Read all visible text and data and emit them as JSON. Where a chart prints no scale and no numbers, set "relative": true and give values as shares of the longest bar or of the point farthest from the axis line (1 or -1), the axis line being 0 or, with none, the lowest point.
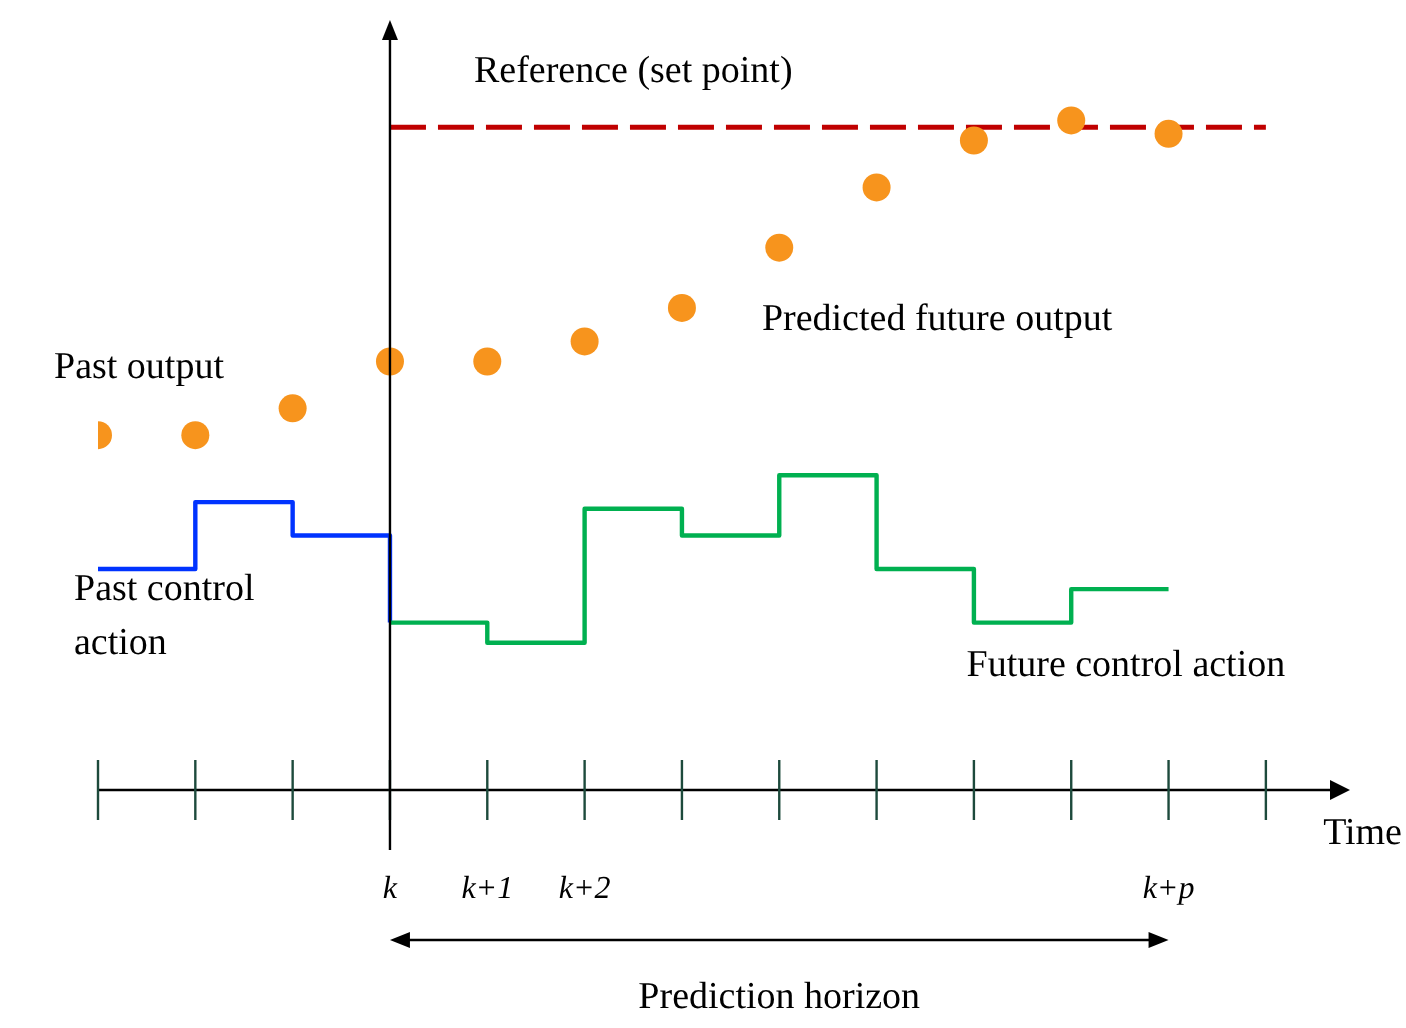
{
  "chart_data": {
    "type": "line",
    "relative": true,
    "xlabel": "Time",
    "categories": [
      null,
      null,
      null,
      "k",
      "k+1",
      "k+2",
      null,
      null,
      null,
      null,
      null,
      "k+p",
      null
    ],
    "tick_labels": "x",
    "legend": false,
    "series": [
      {
        "name": "Reference (set point)",
        "color": "#c00000",
        "line_style": "dashed",
        "marker": "none",
        "values": [
          null,
          null,
          null,
          0.99,
          0.99,
          0.99,
          0.99,
          0.99,
          0.99,
          0.99,
          0.99,
          0.99,
          0.99
        ]
      },
      {
        "name": "Past output",
        "type": "scatter",
        "color": "#f7941d",
        "marker": "circle",
        "values": [
          0.53,
          0.53,
          0.57,
          0.64,
          null,
          null,
          null,
          null,
          null,
          null,
          null,
          null,
          null
        ]
      },
      {
        "name": "Predicted future output",
        "type": "scatter",
        "color": "#f7941d",
        "marker": "circle",
        "values": [
          null,
          null,
          null,
          null,
          0.64,
          0.67,
          0.72,
          0.81,
          0.9,
          0.97,
          1.0,
          0.98,
          null
        ]
      },
      {
        "name": "Past control action",
        "type": "step",
        "color": "#0033ff",
        "marker": "none",
        "values": [
          0.33,
          0.43,
          0.38,
          0.25,
          null,
          null,
          null,
          null,
          null,
          null,
          null,
          null,
          null
        ]
      },
      {
        "name": "Future control action",
        "type": "step",
        "color": "#00b050",
        "marker": "none",
        "values": [
          null,
          null,
          null,
          0.25,
          0.22,
          0.42,
          0.38,
          0.47,
          0.33,
          0.25,
          0.3,
          0.3,
          null
        ]
      }
    ],
    "annotations": [
      "Prediction horizon"
    ]
  }
}
